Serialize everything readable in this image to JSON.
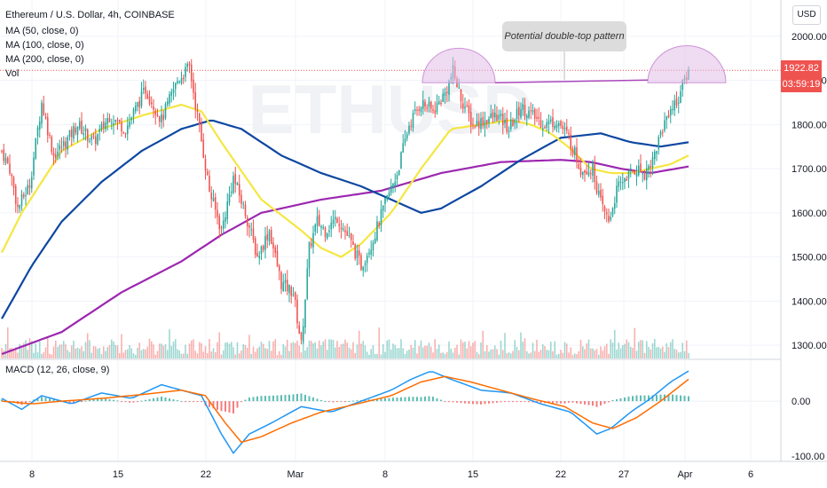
{
  "header": {
    "title": "Ethereum / U.S. Dollar, 4h, COINBASE",
    "indicators": [
      "MA (50, close, 0)",
      "MA (100, close, 0)",
      "MA (200, close, 0)",
      "Vol"
    ],
    "macd_label": "MACD (12, 26, close, 9)"
  },
  "currency_button": "USD",
  "price_tag": {
    "value": "1922.82",
    "countdown": "03:59:19"
  },
  "annotation": "Potential double-top pattern",
  "watermark": "ETHUSD",
  "colors": {
    "up": "#26a69a",
    "down": "#ef5350",
    "ma50": "#f5e642",
    "ma100": "#0d47a1",
    "ma200": "#9c27b0",
    "macd": "#2196f3",
    "signal": "#ff6d00",
    "pattern": "#ce93d8"
  },
  "chart_data": [
    {
      "type": "candlestick",
      "title": "Ethereum / U.S. Dollar, 4h, COINBASE",
      "ylim": [
        1270,
        2050
      ],
      "ytick_labels": [
        "2000.00",
        "1900.00",
        "1800.00",
        "1700.00",
        "1600.00",
        "1500.00",
        "1400.00",
        "1300.00"
      ],
      "xtick_labels": [
        "8",
        "15",
        "22",
        "Mar",
        "8",
        "15",
        "22",
        "27",
        "Apr",
        "6"
      ],
      "close_anchors": [
        [
          0,
          1740
        ],
        [
          4,
          1700
        ],
        [
          8,
          1610
        ],
        [
          14,
          1665
        ],
        [
          20,
          1850
        ],
        [
          26,
          1730
        ],
        [
          32,
          1760
        ],
        [
          38,
          1800
        ],
        [
          46,
          1760
        ],
        [
          54,
          1820
        ],
        [
          62,
          1790
        ],
        [
          72,
          1880
        ],
        [
          80,
          1810
        ],
        [
          88,
          1900
        ],
        [
          94,
          1930
        ],
        [
          98,
          1820
        ],
        [
          104,
          1650
        ],
        [
          110,
          1560
        ],
        [
          116,
          1680
        ],
        [
          122,
          1600
        ],
        [
          128,
          1500
        ],
        [
          134,
          1560
        ],
        [
          140,
          1440
        ],
        [
          146,
          1420
        ],
        [
          150,
          1300
        ],
        [
          154,
          1520
        ],
        [
          158,
          1580
        ],
        [
          162,
          1560
        ],
        [
          168,
          1590
        ],
        [
          174,
          1540
        ],
        [
          180,
          1480
        ],
        [
          186,
          1540
        ],
        [
          192,
          1620
        ],
        [
          198,
          1690
        ],
        [
          204,
          1800
        ],
        [
          210,
          1850
        ],
        [
          216,
          1830
        ],
        [
          222,
          1870
        ],
        [
          226,
          1920
        ],
        [
          230,
          1860
        ],
        [
          236,
          1800
        ],
        [
          242,
          1810
        ],
        [
          248,
          1820
        ],
        [
          254,
          1790
        ],
        [
          260,
          1840
        ],
        [
          266,
          1820
        ],
        [
          272,
          1800
        ],
        [
          278,
          1810
        ],
        [
          284,
          1770
        ],
        [
          290,
          1700
        ],
        [
          296,
          1700
        ],
        [
          300,
          1620
        ],
        [
          304,
          1580
        ],
        [
          308,
          1650
        ],
        [
          312,
          1680
        ],
        [
          318,
          1700
        ],
        [
          322,
          1690
        ],
        [
          326,
          1720
        ],
        [
          330,
          1780
        ],
        [
          334,
          1830
        ],
        [
          338,
          1850
        ],
        [
          342,
          1900
        ],
        [
          344,
          1922.82
        ]
      ],
      "lines": [
        {
          "name": "MA (50, close, 0)",
          "points": [
            [
              0,
              1510
            ],
            [
              10,
              1600
            ],
            [
              30,
              1740
            ],
            [
              50,
              1790
            ],
            [
              70,
              1820
            ],
            [
              90,
              1845
            ],
            [
              100,
              1830
            ],
            [
              110,
              1760
            ],
            [
              130,
              1630
            ],
            [
              150,
              1560
            ],
            [
              160,
              1520
            ],
            [
              170,
              1500
            ],
            [
              180,
              1530
            ],
            [
              195,
              1600
            ],
            [
              210,
              1700
            ],
            [
              225,
              1790
            ],
            [
              240,
              1800
            ],
            [
              255,
              1810
            ],
            [
              265,
              1800
            ],
            [
              275,
              1780
            ],
            [
              285,
              1745
            ],
            [
              295,
              1700
            ],
            [
              305,
              1690
            ],
            [
              315,
              1690
            ],
            [
              325,
              1700
            ],
            [
              335,
              1710
            ],
            [
              344,
              1730
            ]
          ]
        },
        {
          "name": "MA (100, close, 0)",
          "points": [
            [
              0,
              1360
            ],
            [
              15,
              1480
            ],
            [
              30,
              1580
            ],
            [
              50,
              1670
            ],
            [
              70,
              1740
            ],
            [
              90,
              1790
            ],
            [
              105,
              1810
            ],
            [
              120,
              1790
            ],
            [
              140,
              1730
            ],
            [
              160,
              1690
            ],
            [
              180,
              1660
            ],
            [
              200,
              1620
            ],
            [
              210,
              1600
            ],
            [
              220,
              1610
            ],
            [
              240,
              1660
            ],
            [
              260,
              1720
            ],
            [
              280,
              1770
            ],
            [
              300,
              1780
            ],
            [
              315,
              1760
            ],
            [
              330,
              1750
            ],
            [
              344,
              1760
            ]
          ]
        },
        {
          "name": "MA (200, close, 0)",
          "points": [
            [
              0,
              1280
            ],
            [
              30,
              1330
            ],
            [
              60,
              1420
            ],
            [
              90,
              1490
            ],
            [
              110,
              1550
            ],
            [
              130,
              1600
            ],
            [
              160,
              1630
            ],
            [
              190,
              1650
            ],
            [
              220,
              1690
            ],
            [
              250,
              1715
            ],
            [
              280,
              1720
            ],
            [
              295,
              1715
            ],
            [
              310,
              1700
            ],
            [
              325,
              1690
            ],
            [
              344,
              1705
            ]
          ]
        }
      ],
      "pattern_annotation": {
        "text": "Potential double-top pattern",
        "neckline": 1922.82
      }
    },
    {
      "type": "macd",
      "title": "MACD (12, 26, close, 9)",
      "ylim": [
        -110,
        65
      ],
      "ytick_labels": [
        "0.00",
        "-100.00"
      ],
      "macd_anchors": [
        [
          0,
          5
        ],
        [
          10,
          -15
        ],
        [
          20,
          10
        ],
        [
          35,
          -5
        ],
        [
          50,
          15
        ],
        [
          65,
          5
        ],
        [
          80,
          30
        ],
        [
          90,
          20
        ],
        [
          100,
          10
        ],
        [
          110,
          -60
        ],
        [
          116,
          -95
        ],
        [
          124,
          -60
        ],
        [
          135,
          -40
        ],
        [
          150,
          -10
        ],
        [
          165,
          -20
        ],
        [
          180,
          0
        ],
        [
          195,
          20
        ],
        [
          205,
          40
        ],
        [
          215,
          55
        ],
        [
          225,
          40
        ],
        [
          240,
          20
        ],
        [
          255,
          15
        ],
        [
          270,
          -5
        ],
        [
          285,
          -20
        ],
        [
          298,
          -60
        ],
        [
          305,
          -50
        ],
        [
          315,
          -20
        ],
        [
          325,
          5
        ],
        [
          335,
          35
        ],
        [
          344,
          55
        ]
      ],
      "signal_anchors": [
        [
          0,
          0
        ],
        [
          15,
          -5
        ],
        [
          30,
          0
        ],
        [
          50,
          5
        ],
        [
          70,
          12
        ],
        [
          90,
          20
        ],
        [
          102,
          10
        ],
        [
          112,
          -40
        ],
        [
          120,
          -75
        ],
        [
          130,
          -65
        ],
        [
          145,
          -40
        ],
        [
          160,
          -20
        ],
        [
          178,
          -5
        ],
        [
          195,
          10
        ],
        [
          210,
          35
        ],
        [
          222,
          45
        ],
        [
          235,
          35
        ],
        [
          250,
          20
        ],
        [
          265,
          5
        ],
        [
          282,
          -10
        ],
        [
          296,
          -40
        ],
        [
          306,
          -50
        ],
        [
          318,
          -30
        ],
        [
          330,
          0
        ],
        [
          344,
          40
        ]
      ]
    }
  ]
}
